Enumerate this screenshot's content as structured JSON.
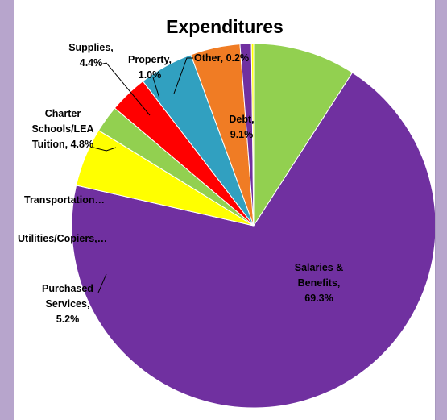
{
  "chart_data": {
    "type": "pie",
    "title": "Expenditures",
    "slices": [
      {
        "label": "Debt",
        "value": 9.1,
        "color": "#92d050",
        "text": [
          "Debt,",
          "9.1%"
        ]
      },
      {
        "label": "Salaries & Benefits",
        "value": 69.3,
        "color": "#7030a0",
        "text": [
          "Salaries &",
          "Benefits,",
          "69.3%"
        ]
      },
      {
        "label": "Purchased Services",
        "value": 5.2,
        "color": "#ffff00",
        "text": [
          "Purchased",
          "Services,",
          "5.2%"
        ]
      },
      {
        "label": "Utilities/Copiers",
        "value": 2.4,
        "color": "#92d050",
        "text": [
          "Utilities/Copiers,…"
        ]
      },
      {
        "label": "Transportation",
        "value": 3.4,
        "color": "#ff0000",
        "text": [
          "Transportation…"
        ]
      },
      {
        "label": "Charter Schools/LEA Tuition",
        "value": 4.8,
        "color": "#31a0c0",
        "text": [
          "Charter",
          "Schools/LEA",
          "Tuition, 4.8%"
        ]
      },
      {
        "label": "Supplies",
        "value": 4.4,
        "color": "#f07c24",
        "text": [
          "Supplies,",
          "4.4%"
        ]
      },
      {
        "label": "Property",
        "value": 1.0,
        "color": "#7030a0",
        "text": [
          "Property,",
          "1.0%"
        ]
      },
      {
        "label": "Other",
        "value": 0.2,
        "color": "#ffff00",
        "text": [
          "Other, 0.2%"
        ]
      }
    ]
  }
}
